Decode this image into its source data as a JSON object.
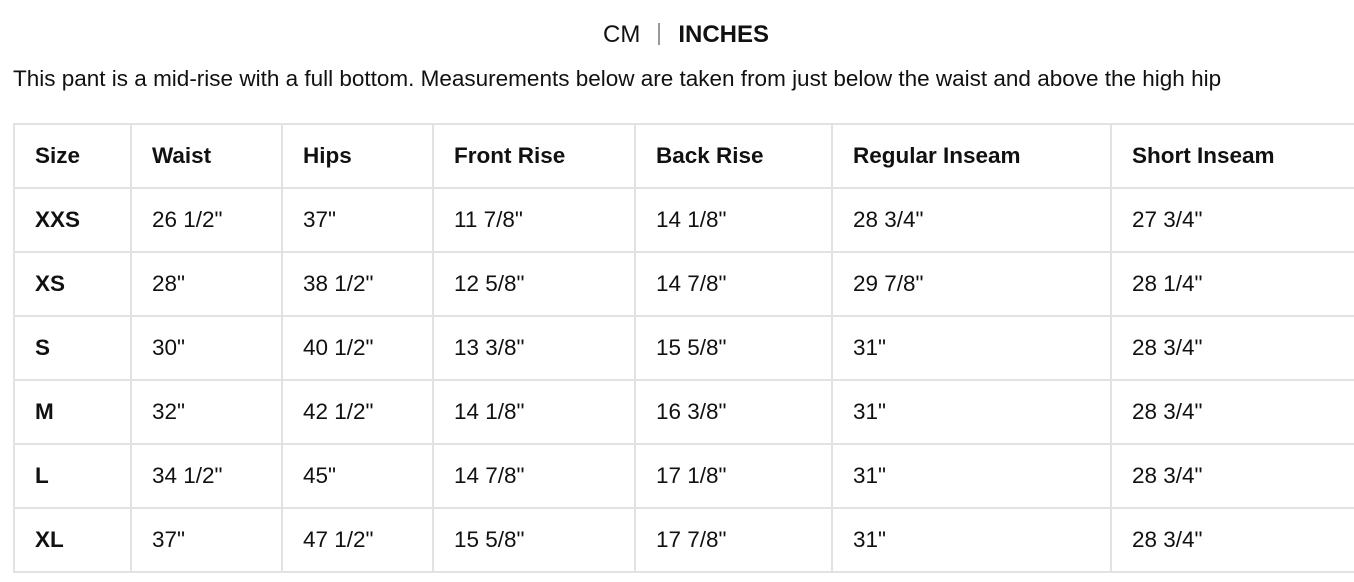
{
  "units": {
    "cm": "CM",
    "inches": "INCHES",
    "selected": "INCHES"
  },
  "description": "This pant is a mid-rise with a full bottom. Measurements below are taken from just below the waist and above the high hip",
  "table": {
    "headers": [
      "Size",
      "Waist",
      "Hips",
      "Front Rise",
      "Back Rise",
      "Regular Inseam",
      "Short Inseam"
    ],
    "rows": [
      [
        "XXS",
        "26 1/2\"",
        "37\"",
        "11 7/8\"",
        "14 1/8\"",
        "28 3/4\"",
        "27 3/4\""
      ],
      [
        "XS",
        "28\"",
        "38 1/2\"",
        "12 5/8\"",
        "14 7/8\"",
        "29 7/8\"",
        "28 1/4\""
      ],
      [
        "S",
        "30\"",
        "40 1/2\"",
        "13 3/8\"",
        "15 5/8\"",
        "31\"",
        "28 3/4\""
      ],
      [
        "M",
        "32\"",
        "42 1/2\"",
        "14 1/8\"",
        "16 3/8\"",
        "31\"",
        "28 3/4\""
      ],
      [
        "L",
        "34 1/2\"",
        "45\"",
        "14 7/8\"",
        "17 1/8\"",
        "31\"",
        "28 3/4\""
      ],
      [
        "XL",
        "37\"",
        "47 1/2\"",
        "15 5/8\"",
        "17 7/8\"",
        "31\"",
        "28 3/4\""
      ]
    ]
  }
}
